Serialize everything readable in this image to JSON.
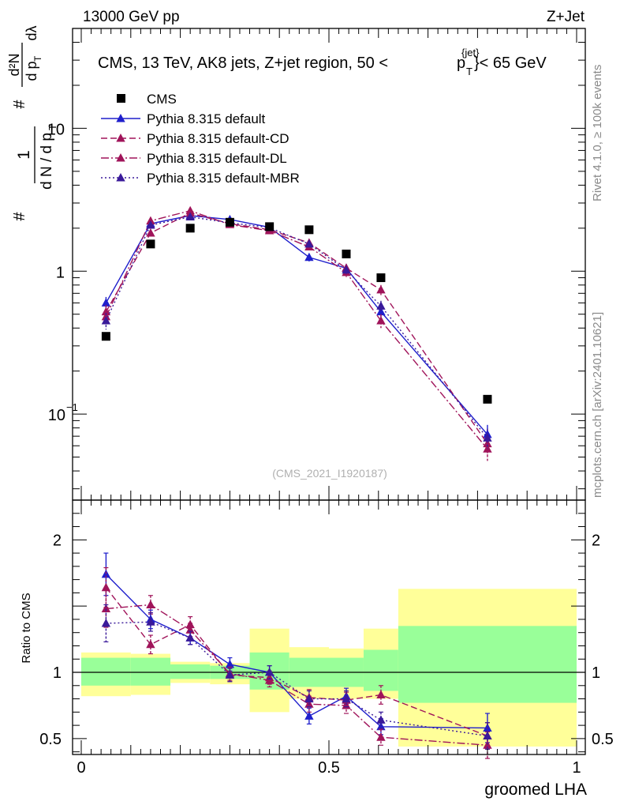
{
  "header": {
    "process": "13000 GeV pp",
    "channel": "Z+Jet"
  },
  "title_main": "CMS, 13 TeV, AK8 jets, Z+jet region, 50 <",
  "title_p": "p",
  "title_sup": "{jet}",
  "title_sub": "T",
  "title_end": "}< 65 GeV",
  "side_texts": {
    "rivet": "Rivet 4.1.0, ≥ 100k events",
    "mcplots": "mcplots.cern.ch [arXiv:2401.10621]"
  },
  "watermark": "(CMS_2021_I1920187)",
  "ylabel_top": {
    "hash_a": "#",
    "one": "1",
    "dn": "d N / d p",
    "dn_sub": "T",
    "hash_b": "#",
    "d2n": "d²N",
    "dpt": "d p",
    "dpt_sub": "T",
    "dlambda": "dλ"
  },
  "ylabel_ratio": "Ratio to CMS",
  "xlabel": "groomed LHA",
  "chart_data": {
    "type": "scatter",
    "xlim": [
      0,
      1
    ],
    "main_ylim_log": [
      0.025,
      50
    ],
    "ratio_ylim": [
      0.38,
      2.3
    ],
    "x_ticks": [
      {
        "v": 0,
        "label": "0"
      },
      {
        "v": 0.5,
        "label": "0.5"
      },
      {
        "v": 1,
        "label": "1"
      }
    ],
    "main_y_ticks": [
      {
        "v": 0.1,
        "base": "10",
        "exp": "−1"
      },
      {
        "v": 1,
        "base": "1",
        "exp": ""
      },
      {
        "v": 10,
        "base": "10",
        "exp": ""
      }
    ],
    "ratio_y_ticks": [
      {
        "v": 0.5,
        "label": "0.5"
      },
      {
        "v": 1,
        "label": "1"
      },
      {
        "v": 2,
        "label": "2"
      }
    ],
    "bin_edges": [
      0,
      0.1,
      0.18,
      0.26,
      0.34,
      0.42,
      0.5,
      0.57,
      0.64,
      1.0
    ],
    "x": [
      0.05,
      0.14,
      0.22,
      0.3,
      0.38,
      0.46,
      0.535,
      0.605,
      0.82
    ],
    "data": {
      "name": "CMS",
      "values": [
        0.35,
        1.55,
        2.0,
        2.2,
        2.05,
        1.95,
        1.32,
        0.9,
        0.127
      ]
    },
    "uncertainty_band": {
      "green_lo": [
        0.9,
        0.9,
        0.95,
        0.95,
        0.87,
        0.89,
        0.89,
        0.86,
        0.77
      ],
      "green_hi": [
        1.11,
        1.11,
        1.06,
        1.05,
        1.15,
        1.11,
        1.11,
        1.17,
        1.35
      ],
      "yellow_lo": [
        0.82,
        0.83,
        0.92,
        0.91,
        0.7,
        0.8,
        0.8,
        0.8,
        0.44
      ],
      "yellow_hi": [
        1.15,
        1.14,
        1.08,
        1.07,
        1.33,
        1.19,
        1.18,
        1.33,
        1.63
      ]
    },
    "series": [
      {
        "name": "Pythia 8.315 default",
        "color": "#1f1fcc",
        "dash": "",
        "values": [
          0.6,
          2.15,
          2.45,
          2.3,
          2.03,
          1.25,
          1.05,
          0.52,
          0.072
        ],
        "errors": [
          0.06,
          0.1,
          0.1,
          0.1,
          0.08,
          0.08,
          0.07,
          0.05,
          0.012
        ],
        "ratio": [
          1.74,
          1.4,
          1.26,
          1.06,
          1.0,
          0.67,
          0.82,
          0.59,
          0.58
        ],
        "ratio_err": [
          0.16,
          0.07,
          0.05,
          0.05,
          0.05,
          0.06,
          0.06,
          0.06,
          0.11
        ]
      },
      {
        "name": "Pythia 8.315 default-CD",
        "color": "#a0145a",
        "dash": "8,4",
        "values": [
          0.52,
          1.85,
          2.55,
          2.15,
          1.95,
          1.58,
          1.05,
          0.74,
          0.062
        ],
        "errors": [
          0.06,
          0.1,
          0.1,
          0.1,
          0.08,
          0.09,
          0.07,
          0.06,
          0.01
        ],
        "ratio": [
          1.64,
          1.21,
          1.36,
          0.98,
          0.96,
          0.81,
          0.79,
          0.83,
          0.52
        ],
        "ratio_err": [
          0.15,
          0.07,
          0.06,
          0.05,
          0.05,
          0.06,
          0.06,
          0.07,
          0.1
        ]
      },
      {
        "name": "Pythia 8.315 default-DL",
        "color": "#a0145a",
        "dash": "10,3,2,3",
        "values": [
          0.48,
          2.25,
          2.65,
          2.12,
          1.92,
          1.48,
          0.98,
          0.45,
          0.057
        ],
        "errors": [
          0.06,
          0.1,
          0.1,
          0.1,
          0.08,
          0.08,
          0.07,
          0.05,
          0.01
        ],
        "ratio": [
          1.48,
          1.51,
          1.32,
          0.99,
          0.94,
          0.76,
          0.75,
          0.51,
          0.45
        ],
        "ratio_err": [
          0.14,
          0.07,
          0.05,
          0.05,
          0.05,
          0.06,
          0.06,
          0.06,
          0.1
        ]
      },
      {
        "name": "Pythia 8.315 default-MBR",
        "color": "#3a1a9a",
        "dash": "2,3",
        "values": [
          0.45,
          2.1,
          2.4,
          2.18,
          2.02,
          1.55,
          1.02,
          0.57,
          0.068
        ],
        "errors": [
          0.06,
          0.1,
          0.1,
          0.1,
          0.08,
          0.08,
          0.07,
          0.05,
          0.011
        ],
        "ratio": [
          1.37,
          1.38,
          1.26,
          0.98,
          1.0,
          0.8,
          0.8,
          0.64,
          0.52
        ],
        "ratio_err": [
          0.14,
          0.07,
          0.05,
          0.05,
          0.05,
          0.06,
          0.06,
          0.06,
          0.1
        ]
      }
    ]
  }
}
